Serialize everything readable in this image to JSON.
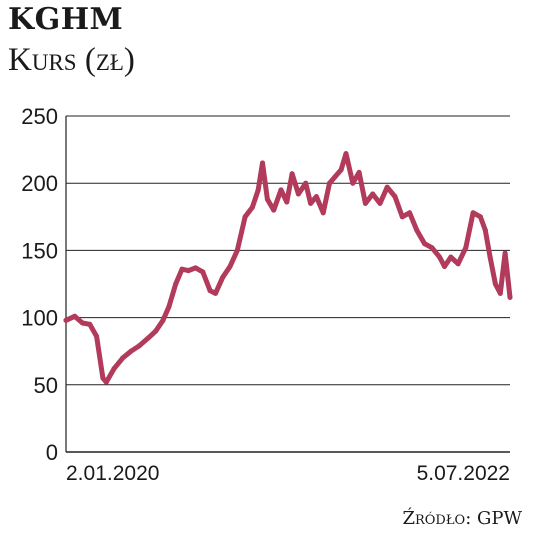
{
  "header": {
    "title": "KGHM",
    "subtitle": "Kurs (zł)"
  },
  "footer": {
    "source": "Źródło: GPW"
  },
  "colors": {
    "line": "#b23a5b",
    "grid": "#222222",
    "text": "#1a1a1a"
  },
  "chart_data": {
    "type": "line",
    "title": "KGHM",
    "subtitle": "Kurs (zł)",
    "xlabel": "",
    "ylabel": "",
    "ylim": [
      0,
      250
    ],
    "yticks": [
      0,
      50,
      100,
      150,
      200,
      250
    ],
    "grid": true,
    "xlim": [
      "2020-01-02",
      "2022-07-05"
    ],
    "xtick_labels": [
      {
        "date": "2020-01-02",
        "label": "2.01.2020"
      },
      {
        "date": "2022-07-05",
        "label": "5.07.2022"
      }
    ],
    "series": [
      {
        "points": [
          [
            "2020-01-02",
            98
          ],
          [
            "2020-01-20",
            101
          ],
          [
            "2020-02-05",
            96
          ],
          [
            "2020-02-20",
            95
          ],
          [
            "2020-03-05",
            86
          ],
          [
            "2020-03-18",
            55
          ],
          [
            "2020-03-25",
            52
          ],
          [
            "2020-04-10",
            62
          ],
          [
            "2020-04-28",
            70
          ],
          [
            "2020-05-15",
            75
          ],
          [
            "2020-06-01",
            79
          ],
          [
            "2020-06-20",
            85
          ],
          [
            "2020-07-05",
            90
          ],
          [
            "2020-07-20",
            98
          ],
          [
            "2020-08-01",
            108
          ],
          [
            "2020-08-15",
            125
          ],
          [
            "2020-08-28",
            136
          ],
          [
            "2020-09-10",
            135
          ],
          [
            "2020-09-25",
            137
          ],
          [
            "2020-10-10",
            134
          ],
          [
            "2020-10-25",
            120
          ],
          [
            "2020-11-05",
            118
          ],
          [
            "2020-11-20",
            130
          ],
          [
            "2020-12-05",
            138
          ],
          [
            "2020-12-20",
            150
          ],
          [
            "2021-01-05",
            175
          ],
          [
            "2021-01-20",
            182
          ],
          [
            "2021-02-01",
            195
          ],
          [
            "2021-02-10",
            215
          ],
          [
            "2021-02-20",
            188
          ],
          [
            "2021-03-05",
            180
          ],
          [
            "2021-03-20",
            195
          ],
          [
            "2021-04-01",
            186
          ],
          [
            "2021-04-12",
            207
          ],
          [
            "2021-04-25",
            192
          ],
          [
            "2021-05-10",
            200
          ],
          [
            "2021-05-20",
            185
          ],
          [
            "2021-06-01",
            190
          ],
          [
            "2021-06-15",
            178
          ],
          [
            "2021-06-28",
            200
          ],
          [
            "2021-07-10",
            205
          ],
          [
            "2021-07-22",
            210
          ],
          [
            "2021-08-01",
            222
          ],
          [
            "2021-08-15",
            200
          ],
          [
            "2021-08-28",
            208
          ],
          [
            "2021-09-10",
            185
          ],
          [
            "2021-09-25",
            192
          ],
          [
            "2021-10-10",
            185
          ],
          [
            "2021-10-25",
            197
          ],
          [
            "2021-11-10",
            190
          ],
          [
            "2021-11-25",
            175
          ],
          [
            "2021-12-10",
            178
          ],
          [
            "2021-12-25",
            165
          ],
          [
            "2022-01-10",
            155
          ],
          [
            "2022-01-25",
            152
          ],
          [
            "2022-02-10",
            145
          ],
          [
            "2022-02-20",
            138
          ],
          [
            "2022-03-05",
            145
          ],
          [
            "2022-03-20",
            140
          ],
          [
            "2022-04-05",
            152
          ],
          [
            "2022-04-20",
            178
          ],
          [
            "2022-05-05",
            175
          ],
          [
            "2022-05-15",
            165
          ],
          [
            "2022-05-25",
            145
          ],
          [
            "2022-06-05",
            125
          ],
          [
            "2022-06-15",
            118
          ],
          [
            "2022-06-25",
            148
          ],
          [
            "2022-07-01",
            128
          ],
          [
            "2022-07-05",
            115
          ]
        ]
      }
    ]
  }
}
